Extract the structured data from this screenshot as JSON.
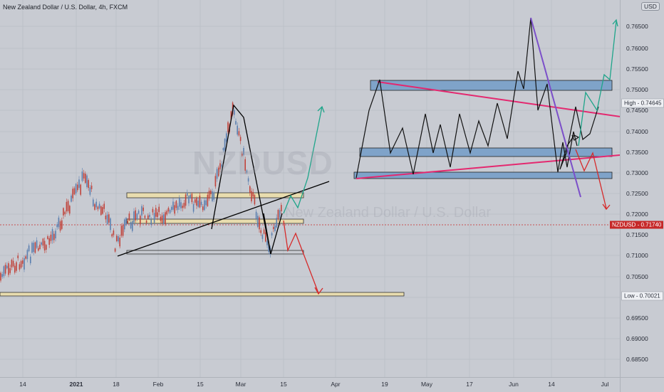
{
  "title": "New Zealand Dollar / U.S. Dollar, 4h, FXCM",
  "currency": "USD",
  "watermark": {
    "symbol": "NZDUSD",
    "name": "New Zealand Dollar / U.S. Dollar"
  },
  "price_scale": {
    "levels": [
      "0.76500",
      "0.76000",
      "0.75500",
      "0.75000",
      "0.74500",
      "0.74000",
      "0.73500",
      "0.73000",
      "0.72500",
      "0.72000",
      "0.71500",
      "0.71000",
      "0.70500",
      "0.70000",
      "0.69500",
      "0.69000",
      "0.68500"
    ]
  },
  "markers": {
    "high": {
      "label": "High",
      "value": "0.74645"
    },
    "last": {
      "label": "NZDUSD",
      "value": "0.71740"
    },
    "low": {
      "label": "Low",
      "value": "0.70021"
    }
  },
  "time_scale": {
    "labels": [
      "14",
      "2021",
      "18",
      "Feb",
      "15",
      "Mar",
      "15",
      "Apr",
      "19",
      "May",
      "17",
      "Jun",
      "14",
      "Jul"
    ]
  },
  "colors": {
    "background": "#c8cbd2",
    "candle_up": "#5b7fb0",
    "candle_down": "#c0433b",
    "zone_fill_yellow": "#e8dcae",
    "zone_fill_blue": "#7fa3c9",
    "trend_pink": "#e4286f",
    "trend_purple": "#7b4fc9",
    "arrow_green": "#1fa58a",
    "arrow_red": "#d62a2a",
    "last_price": "#c62828"
  }
}
